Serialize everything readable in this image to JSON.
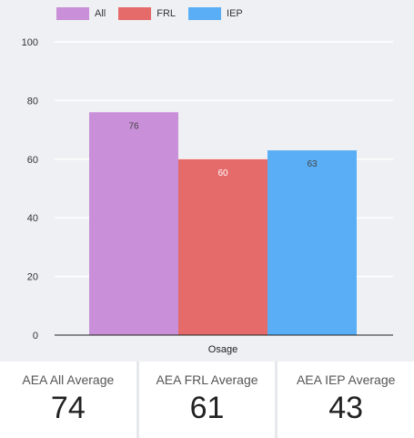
{
  "chart_data": {
    "type": "bar",
    "title": "",
    "xlabel": "",
    "ylabel": "",
    "categories": [
      "Osage"
    ],
    "series": [
      {
        "name": "All",
        "values": [
          76
        ],
        "color": "#c98fd8"
      },
      {
        "name": "FRL",
        "values": [
          60
        ],
        "color": "#e56b6b"
      },
      {
        "name": "IEP",
        "values": [
          63
        ],
        "color": "#5aaef5"
      }
    ],
    "ylim": [
      0,
      100
    ],
    "yticks": [
      0,
      20,
      40,
      60,
      80,
      100
    ],
    "legend": "top-left",
    "grid": true,
    "data_labels": true
  },
  "kpis": [
    {
      "label": "AEA All Average",
      "value": "74"
    },
    {
      "label": "AEA FRL Average",
      "value": "61"
    },
    {
      "label": "AEA IEP Average",
      "value": "43"
    }
  ]
}
